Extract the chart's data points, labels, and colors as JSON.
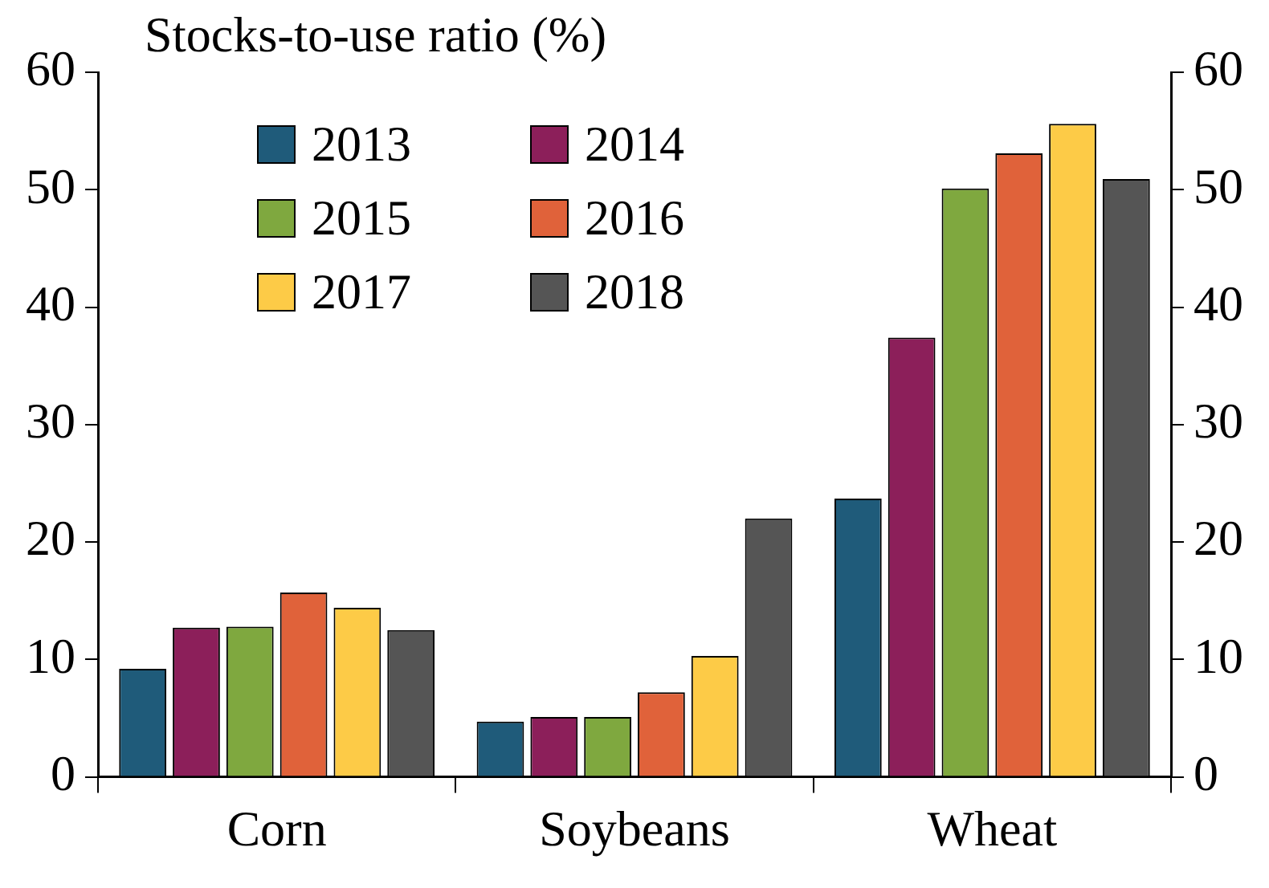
{
  "chart_data": {
    "type": "bar",
    "title": "Stocks-to-use ratio (%)",
    "categories": [
      "Corn",
      "Soybeans",
      "Wheat"
    ],
    "series": [
      {
        "name": "2013",
        "color": "#1f5b7a",
        "values": [
          9.2,
          4.7,
          23.7
        ]
      },
      {
        "name": "2014",
        "color": "#8c1f5a",
        "values": [
          12.7,
          5.1,
          37.4
        ]
      },
      {
        "name": "2015",
        "color": "#7fa83f",
        "values": [
          12.8,
          5.1,
          50.1
        ]
      },
      {
        "name": "2016",
        "color": "#e0623a",
        "values": [
          15.7,
          7.2,
          53.1
        ]
      },
      {
        "name": "2017",
        "color": "#fdcb47",
        "values": [
          14.4,
          10.3,
          55.6
        ]
      },
      {
        "name": "2018",
        "color": "#555555",
        "values": [
          12.5,
          22.0,
          50.9
        ]
      }
    ],
    "ylim": [
      0,
      60
    ],
    "yticks": [
      0,
      10,
      20,
      30,
      40,
      50,
      60
    ],
    "y2lim": [
      0,
      60
    ],
    "y2ticks": [
      0,
      10,
      20,
      30,
      40,
      50,
      60
    ],
    "grid": false,
    "legend": "top left"
  }
}
